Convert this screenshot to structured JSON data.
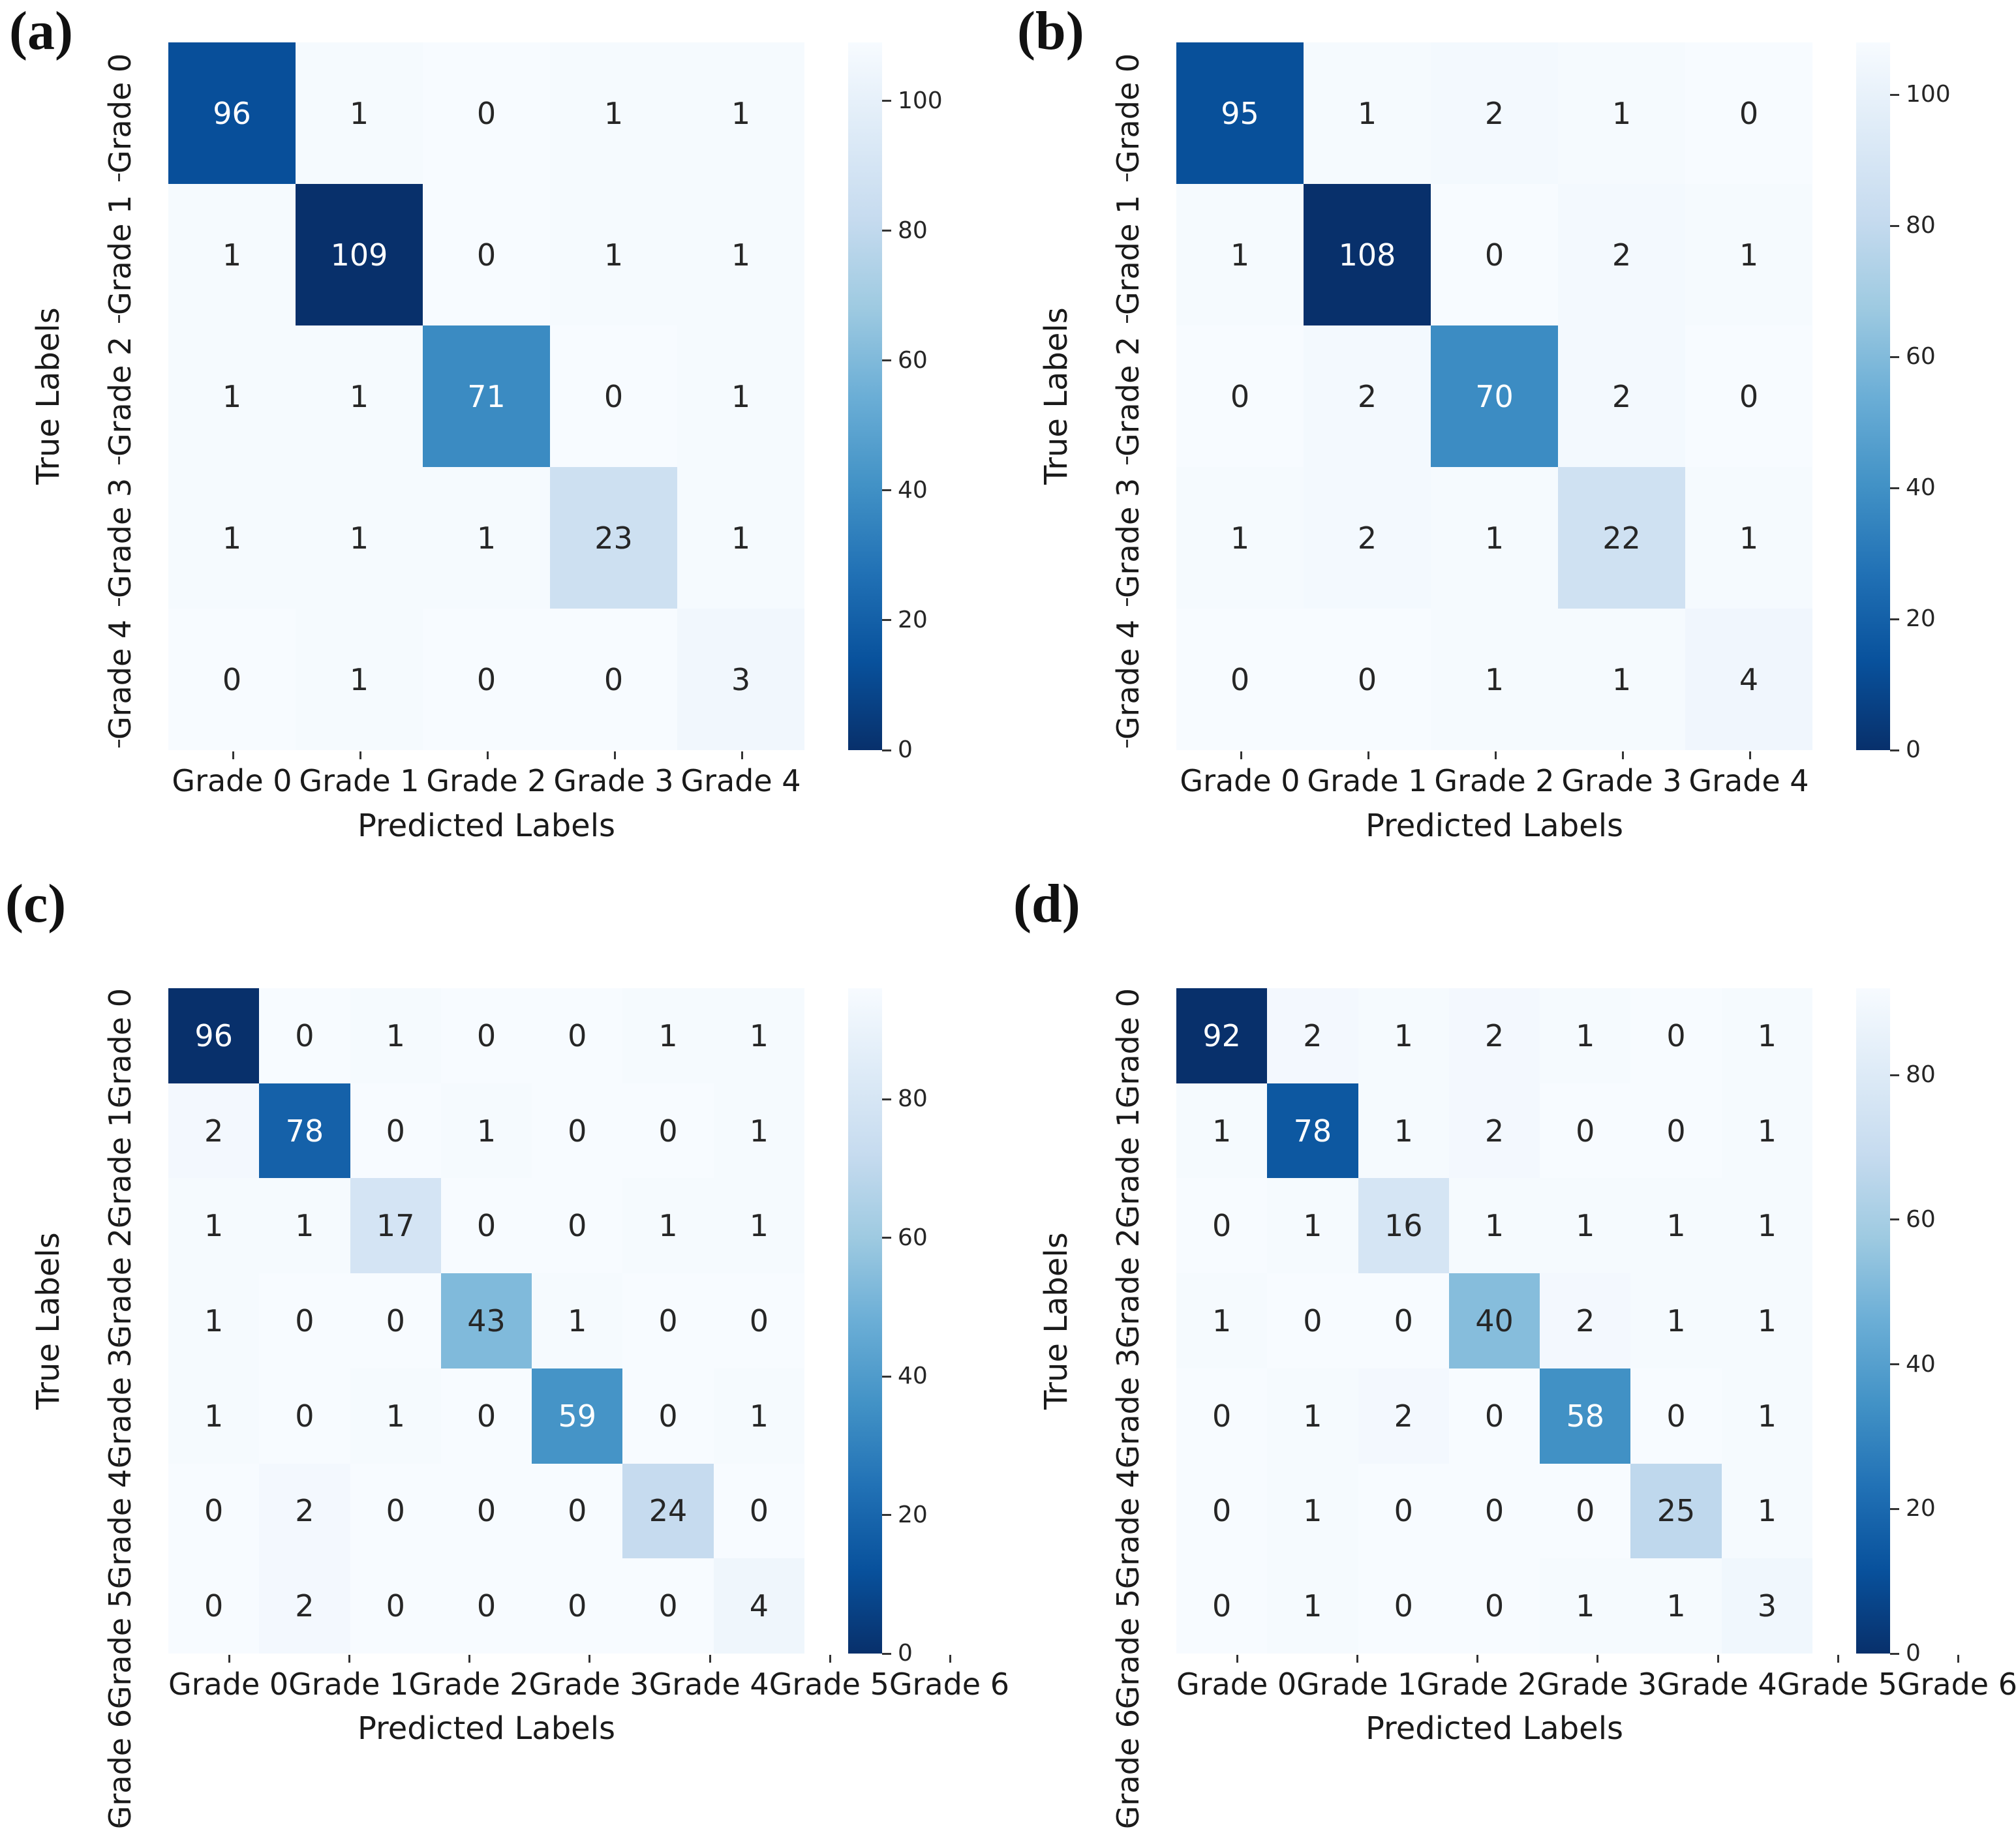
{
  "figure": {
    "background": "#ffffff",
    "colormap_name": "Blues",
    "colormap_anchors": [
      "#f7fbff",
      "#deebf7",
      "#c6dbef",
      "#9ecae1",
      "#6baed6",
      "#4292c6",
      "#2171b5",
      "#08519c",
      "#08306b"
    ],
    "annotation_dark_color": "#262626",
    "annotation_light_color": "#ffffff",
    "tick_color": "#333333"
  },
  "chart_data": [
    {
      "type": "heatmap",
      "panel_label": "(a)",
      "xlabel": "Predicted Labels",
      "ylabel": "True Labels",
      "x_categories": [
        "Grade 0",
        "Grade 1",
        "Grade 2",
        "Grade 3",
        "Grade 4"
      ],
      "y_categories": [
        "Grade 0",
        "Grade 1",
        "Grade 2",
        "Grade 3",
        "Grade 4"
      ],
      "values": [
        [
          96,
          1,
          0,
          1,
          1
        ],
        [
          1,
          109,
          0,
          1,
          1
        ],
        [
          1,
          1,
          71,
          0,
          1
        ],
        [
          1,
          1,
          1,
          23,
          1
        ],
        [
          0,
          1,
          0,
          0,
          3
        ]
      ],
      "vmin": 0,
      "vmax": 109,
      "colorbar_ticks": [
        0,
        20,
        40,
        60,
        80,
        100
      ],
      "legend_position": "right",
      "grid": false
    },
    {
      "type": "heatmap",
      "panel_label": "(b)",
      "xlabel": "Predicted Labels",
      "ylabel": "True Labels",
      "x_categories": [
        "Grade 0",
        "Grade 1",
        "Grade 2",
        "Grade 3",
        "Grade 4"
      ],
      "y_categories": [
        "Grade 0",
        "Grade 1",
        "Grade 2",
        "Grade 3",
        "Grade 4"
      ],
      "values": [
        [
          95,
          1,
          2,
          1,
          0
        ],
        [
          1,
          108,
          0,
          2,
          1
        ],
        [
          0,
          2,
          70,
          2,
          0
        ],
        [
          1,
          2,
          1,
          22,
          1
        ],
        [
          0,
          0,
          1,
          1,
          4
        ]
      ],
      "vmin": 0,
      "vmax": 108,
      "colorbar_ticks": [
        0,
        20,
        40,
        60,
        80,
        100
      ],
      "legend_position": "right",
      "grid": false
    },
    {
      "type": "heatmap",
      "panel_label": "(c)",
      "xlabel": "Predicted Labels",
      "ylabel": "True Labels",
      "x_categories": [
        "Grade 0",
        "Grade 1",
        "Grade 2",
        "Grade 3",
        "Grade 4",
        "Grade 5",
        "Grade 6"
      ],
      "y_categories": [
        "Grade 0",
        "Grade 1",
        "Grade 2",
        "Grade 3",
        "Grade 4",
        "Grade 5",
        "Grade 6"
      ],
      "values": [
        [
          96,
          0,
          1,
          0,
          0,
          1,
          1
        ],
        [
          2,
          78,
          0,
          1,
          0,
          0,
          1
        ],
        [
          1,
          1,
          17,
          0,
          0,
          1,
          1
        ],
        [
          1,
          0,
          0,
          43,
          1,
          0,
          0
        ],
        [
          1,
          0,
          1,
          0,
          59,
          0,
          1
        ],
        [
          0,
          2,
          0,
          0,
          0,
          24,
          0
        ],
        [
          0,
          2,
          0,
          0,
          0,
          0,
          4
        ]
      ],
      "vmin": 0,
      "vmax": 96,
      "colorbar_ticks": [
        0,
        20,
        40,
        60,
        80
      ],
      "legend_position": "right",
      "grid": false
    },
    {
      "type": "heatmap",
      "panel_label": "(d)",
      "xlabel": "Predicted Labels",
      "ylabel": "True Labels",
      "x_categories": [
        "Grade 0",
        "Grade 1",
        "Grade 2",
        "Grade 3",
        "Grade 4",
        "Grade 5",
        "Grade 6"
      ],
      "y_categories": [
        "Grade 0",
        "Grade 1",
        "Grade 2",
        "Grade 3",
        "Grade 4",
        "Grade 5",
        "Grade 6"
      ],
      "values": [
        [
          92,
          2,
          1,
          2,
          1,
          0,
          1
        ],
        [
          1,
          78,
          1,
          2,
          0,
          0,
          1
        ],
        [
          0,
          1,
          16,
          1,
          1,
          1,
          1
        ],
        [
          1,
          0,
          0,
          40,
          2,
          1,
          1
        ],
        [
          0,
          1,
          2,
          0,
          58,
          0,
          1
        ],
        [
          0,
          1,
          0,
          0,
          0,
          25,
          1
        ],
        [
          0,
          1,
          0,
          0,
          1,
          1,
          3
        ]
      ],
      "vmin": 0,
      "vmax": 92,
      "colorbar_ticks": [
        0,
        20,
        40,
        60,
        80
      ],
      "legend_position": "right",
      "grid": false
    }
  ]
}
